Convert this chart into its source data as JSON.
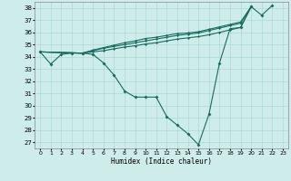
{
  "xlabel": "Humidex (Indice chaleur)",
  "xlim": [
    -0.5,
    23.5
  ],
  "ylim": [
    26.5,
    38.5
  ],
  "xticks": [
    0,
    1,
    2,
    3,
    4,
    5,
    6,
    7,
    8,
    9,
    10,
    11,
    12,
    13,
    14,
    15,
    16,
    17,
    18,
    19,
    20,
    21,
    22,
    23
  ],
  "yticks": [
    27,
    28,
    29,
    30,
    31,
    32,
    33,
    34,
    35,
    36,
    37,
    38
  ],
  "bg_color": "#ceecea",
  "grid_color": "#aed8d4",
  "line_color": "#1a6b5e",
  "series": [
    [
      34.4,
      33.4,
      34.2,
      34.3,
      34.3,
      34.2,
      33.5,
      32.5,
      31.2,
      30.7,
      30.7,
      30.7,
      29.1,
      28.4,
      27.7,
      26.8,
      29.3,
      33.5,
      36.3,
      36.4,
      38.1,
      37.4,
      38.2,
      null
    ],
    [
      34.4,
      null,
      null,
      null,
      34.3,
      34.4,
      34.5,
      34.65,
      34.8,
      34.9,
      35.05,
      35.15,
      35.3,
      35.45,
      35.55,
      35.65,
      35.8,
      36.0,
      36.2,
      36.4,
      38.1,
      null,
      null,
      null
    ],
    [
      34.4,
      null,
      null,
      null,
      34.3,
      34.5,
      34.7,
      34.85,
      35.0,
      35.15,
      35.3,
      35.45,
      35.6,
      35.75,
      35.85,
      35.95,
      36.15,
      36.35,
      36.55,
      36.75,
      38.1,
      null,
      null,
      null
    ],
    [
      34.4,
      null,
      null,
      null,
      34.3,
      34.55,
      34.75,
      34.95,
      35.15,
      35.3,
      35.5,
      35.6,
      35.75,
      35.9,
      35.95,
      36.05,
      36.25,
      36.45,
      36.65,
      36.85,
      38.1,
      null,
      null,
      null
    ]
  ]
}
